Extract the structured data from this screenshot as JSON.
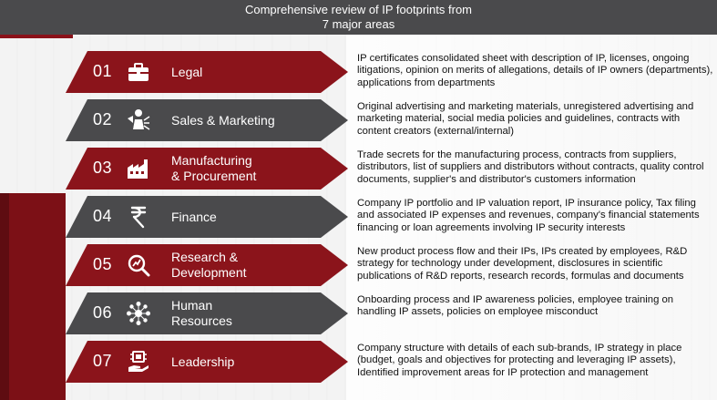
{
  "header": {
    "line1": "Comprehensive review of IP footprints from",
    "line2": "7 major areas"
  },
  "colors": {
    "red": "#8b141b",
    "gray": "#4a4a4c",
    "header": "#4a4a4c"
  },
  "items": [
    {
      "number": "01",
      "icon": "briefcase-icon",
      "color": "red",
      "label_lines": [
        "Legal"
      ],
      "description": "IP certificates consolidated sheet with description of IP, licenses, ongoing litigations, opinion on merits of allegations, details of IP owners (departments), applications from departments"
    },
    {
      "number": "02",
      "icon": "megaphone-person-icon",
      "color": "gray",
      "label_lines": [
        "Sales & Marketing"
      ],
      "description": "Original advertising and marketing materials, unregistered advertising and marketing material, social media policies and guidelines, contracts with content creators (external/internal)"
    },
    {
      "number": "03",
      "icon": "factory-icon",
      "color": "red",
      "label_lines": [
        "Manufacturing",
        "& Procurement"
      ],
      "description": "Trade secrets for the manufacturing process, contracts from suppliers, distributors, list of suppliers and distributors without contracts, quality control documents, supplier's and distributor's customers information"
    },
    {
      "number": "04",
      "icon": "rupee-icon",
      "color": "gray",
      "label_lines": [
        "Finance"
      ],
      "description": "Company IP portfolio and IP valuation report, IP insurance policy, Tax filing and associated IP expenses and revenues, company's financial statements financing or loan agreements involving IP security interests"
    },
    {
      "number": "05",
      "icon": "research-magnifier-icon",
      "color": "red",
      "label_lines": [
        "Research &",
        "Development"
      ],
      "description": "New product process flow and their IPs,  IPs created by employees, R&D strategy for technology under development, disclosures in scientific publications of R&D reports, research records, formulas and documents"
    },
    {
      "number": "06",
      "icon": "people-network-icon",
      "color": "gray",
      "label_lines": [
        "Human",
        "Resources"
      ],
      "description": "Onboarding process and IP awareness policies, employee training on handling IP assets, policies on employee misconduct"
    },
    {
      "number": "07",
      "icon": "leadership-chip-hand-icon",
      "color": "red",
      "label_lines": [
        "Leadership"
      ],
      "description": "Company structure with details of each sub-brands, IP strategy in place (budget, goals and objectives for protecting and leveraging IP assets), Identified improvement areas for IP protection and management"
    }
  ]
}
